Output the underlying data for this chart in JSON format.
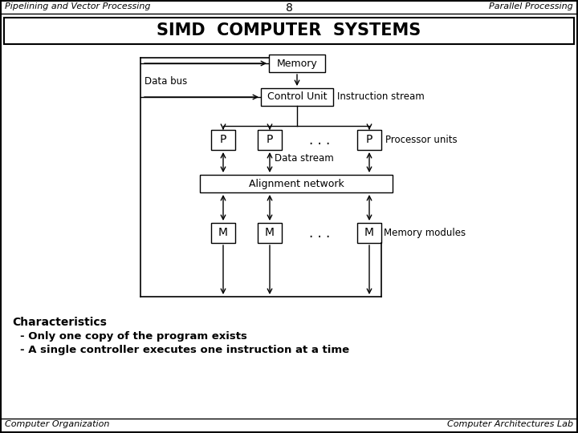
{
  "header_left": "Pipelining and Vector Processing",
  "header_center": "8",
  "header_right": "Parallel Processing",
  "title": "SIMD  COMPUTER  SYSTEMS",
  "footer_left": "Computer Organization",
  "footer_right": "Computer Architectures Lab",
  "char_label": "Characteristics",
  "bullet1": "- Only one copy of the program exists",
  "bullet2": "- A single controller executes one instruction at a time",
  "bg_color": "#ffffff",
  "border_color": "#000000"
}
